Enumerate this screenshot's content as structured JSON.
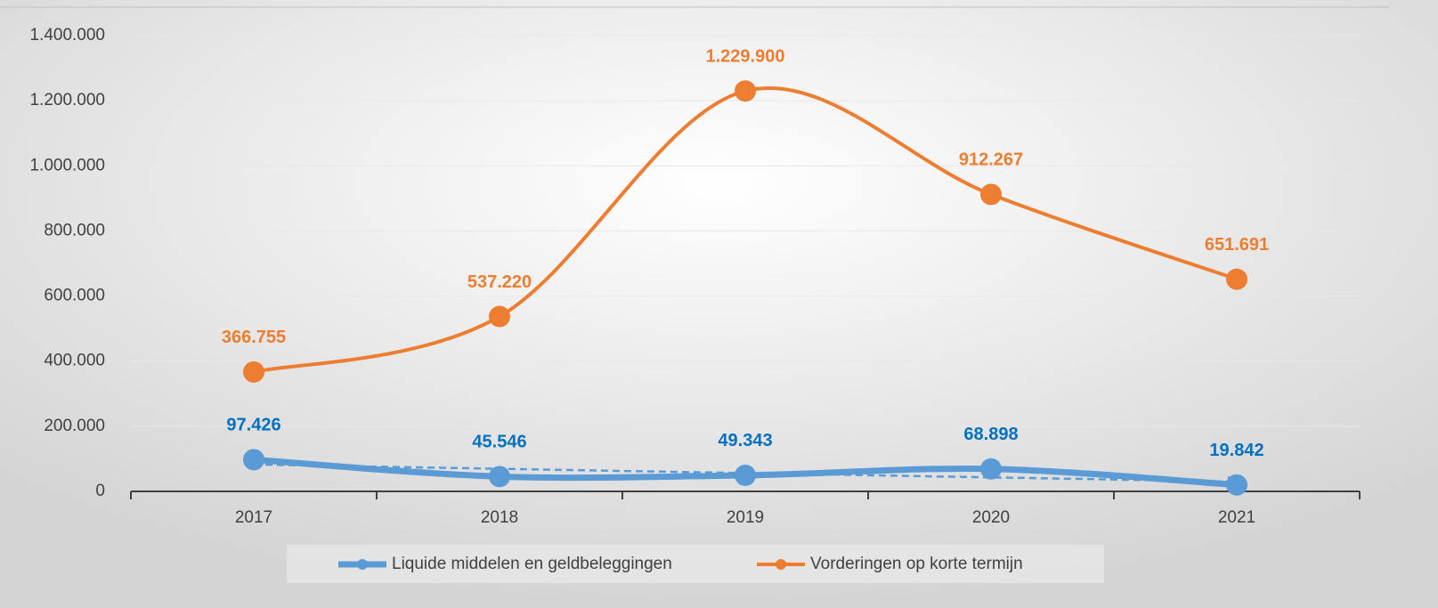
{
  "chart_data": {
    "type": "line",
    "categories": [
      "2017",
      "2018",
      "2019",
      "2020",
      "2021"
    ],
    "series": [
      {
        "name": "Liquide middelen en geldbeleggingen",
        "color": "#5b9bd5",
        "label_color": "#0070c0",
        "trendline": true,
        "values": [
          97426,
          45546,
          49343,
          68898,
          19842
        ],
        "value_labels": [
          "97.426",
          "45.546",
          "49.343",
          "68.898",
          "19.842"
        ]
      },
      {
        "name": "Vorderingen op korte termijn",
        "color": "#ed7d31",
        "label_color": "#ed7d31",
        "trendline": false,
        "values": [
          366755,
          537220,
          1229900,
          912267,
          651691
        ],
        "value_labels": [
          "366.755",
          "537.220",
          "1.229.900",
          "912.267",
          "651.691"
        ]
      }
    ],
    "ylim": [
      0,
      1400000
    ],
    "yticks": [
      0,
      {
        "value": 200000,
        "label": "200.000"
      },
      {
        "value": 400000,
        "label": "400.000"
      },
      {
        "value": 600000,
        "label": "600.000"
      },
      {
        "value": 800000,
        "label": "800.000"
      },
      {
        "value": 1000000,
        "label": "1.000.000"
      },
      {
        "value": 1200000,
        "label": "1.200.000"
      },
      {
        "value": 1400000,
        "label": "1.400.000"
      }
    ],
    "grid": true,
    "legend": "bottom",
    "smooth": true
  }
}
